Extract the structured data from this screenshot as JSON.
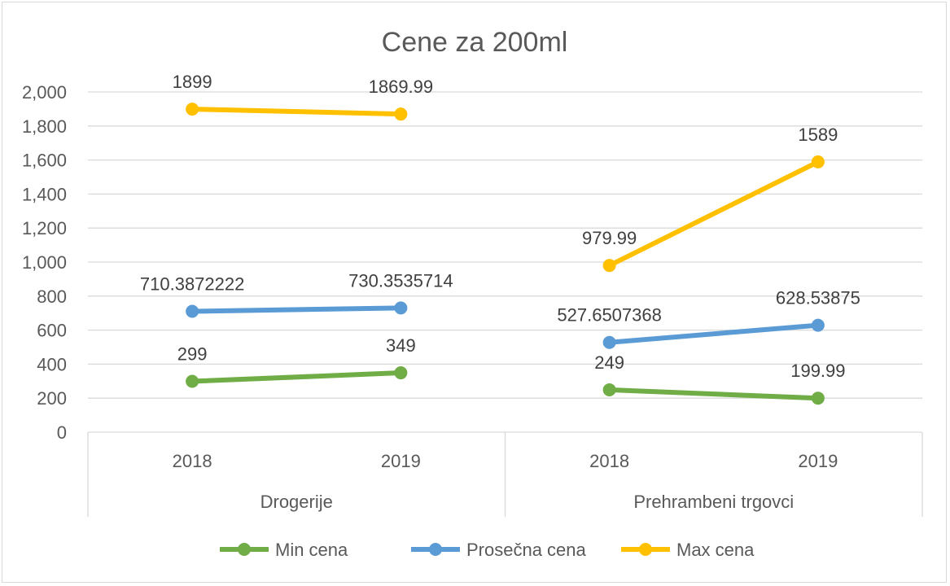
{
  "chart_data": {
    "type": "line",
    "title": "Cene za 200ml",
    "ylim": [
      0,
      2000
    ],
    "yticks": [
      0,
      200,
      400,
      600,
      800,
      1000,
      1200,
      1400,
      1600,
      1800,
      2000
    ],
    "ytick_labels": [
      "0",
      "200",
      "400",
      "600",
      "800",
      "1,000",
      "1,200",
      "1,400",
      "1,600",
      "1,800",
      "2,000"
    ],
    "grid": true,
    "legend_position": "bottom",
    "groups": [
      {
        "name": "Drogerije",
        "categories": [
          "2018",
          "2019"
        ]
      },
      {
        "name": "Prehrambeni trgovci",
        "categories": [
          "2018",
          "2019"
        ]
      }
    ],
    "series": [
      {
        "name": "Min cena",
        "color": "#70AD47",
        "segments": [
          [
            299,
            349
          ],
          [
            249,
            199.99
          ]
        ],
        "labels": [
          [
            "299",
            "349"
          ],
          [
            "249",
            "199.99"
          ]
        ]
      },
      {
        "name": "Prosečna cena",
        "color": "#5B9BD5",
        "segments": [
          [
            710.3872222,
            730.3535714
          ],
          [
            527.6507368,
            628.53875
          ]
        ],
        "labels": [
          [
            "710.3872222",
            "730.3535714"
          ],
          [
            "527.6507368",
            "628.53875"
          ]
        ]
      },
      {
        "name": "Max cena",
        "color": "#FFC000",
        "segments": [
          [
            1899,
            1869.99
          ],
          [
            979.99,
            1589
          ]
        ],
        "labels": [
          [
            "1899",
            "1869.99"
          ],
          [
            "979.99",
            "1589"
          ]
        ]
      }
    ]
  }
}
